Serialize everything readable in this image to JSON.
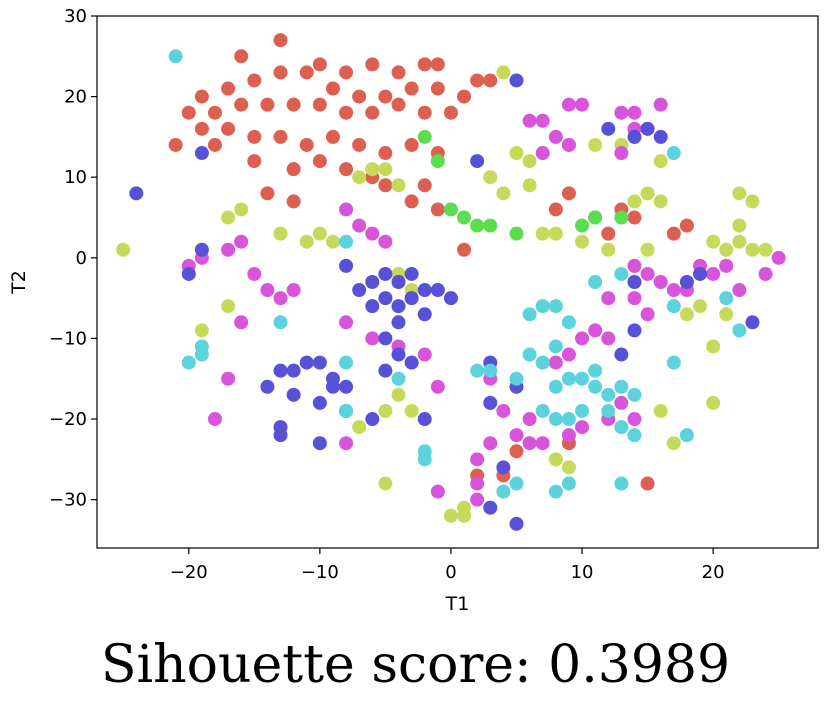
{
  "chart_data": {
    "type": "scatter",
    "title": "",
    "xlabel": "T1",
    "ylabel": "T2",
    "xlim": [
      -27,
      28
    ],
    "ylim": [
      -36,
      30
    ],
    "xticks": [
      -20,
      -10,
      0,
      10,
      20
    ],
    "yticks": [
      -30,
      -20,
      -10,
      0,
      10,
      20,
      30
    ],
    "xtick_labels": [
      "−20",
      "−10",
      "0",
      "10",
      "20"
    ],
    "ytick_labels": [
      "−30",
      "−20",
      "−10",
      "0",
      "10",
      "20",
      "30"
    ],
    "grid": false,
    "legend": "none",
    "series": [
      {
        "color": "#dd5f52",
        "points": [
          [
            -16,
            25
          ],
          [
            -13,
            27
          ],
          [
            -10,
            24
          ],
          [
            -8,
            23
          ],
          [
            -6,
            24
          ],
          [
            -4,
            23
          ],
          [
            -2,
            24
          ],
          [
            -1,
            24
          ],
          [
            2,
            22
          ],
          [
            3,
            22
          ],
          [
            -19,
            20
          ],
          [
            -17,
            21
          ],
          [
            -15,
            22
          ],
          [
            -13,
            23
          ],
          [
            -11,
            23
          ],
          [
            -9,
            21
          ],
          [
            -7,
            20
          ],
          [
            -5,
            20
          ],
          [
            -3,
            21
          ],
          [
            -1,
            21
          ],
          [
            1,
            20
          ],
          [
            -20,
            18
          ],
          [
            -18,
            18
          ],
          [
            -16,
            19
          ],
          [
            -14,
            19
          ],
          [
            -12,
            19
          ],
          [
            -10,
            19
          ],
          [
            -8,
            18
          ],
          [
            -6,
            18
          ],
          [
            -4,
            19
          ],
          [
            -2,
            18
          ],
          [
            0,
            18
          ],
          [
            -21,
            14
          ],
          [
            -19,
            16
          ],
          [
            -17,
            16
          ],
          [
            -15,
            15
          ],
          [
            -13,
            15
          ],
          [
            -11,
            14
          ],
          [
            -9,
            15
          ],
          [
            -7,
            14
          ],
          [
            -5,
            13
          ],
          [
            -3,
            14
          ],
          [
            -1,
            13
          ],
          [
            -18,
            14
          ],
          [
            -15,
            12
          ],
          [
            -12,
            11
          ],
          [
            -10,
            12
          ],
          [
            -8,
            11
          ],
          [
            -6,
            10
          ],
          [
            -2,
            9
          ],
          [
            -14,
            8
          ],
          [
            -12,
            7
          ],
          [
            -5,
            9
          ],
          [
            -3,
            7
          ],
          [
            -1,
            6
          ],
          [
            1,
            1
          ],
          [
            11,
            5
          ],
          [
            13,
            6
          ],
          [
            14,
            5
          ],
          [
            17,
            3
          ],
          [
            18,
            4
          ],
          [
            8,
            6
          ],
          [
            9,
            8
          ],
          [
            12,
            3
          ],
          [
            9,
            -23
          ],
          [
            4,
            -27
          ],
          [
            2,
            -27
          ],
          [
            15,
            -28
          ],
          [
            5,
            -24
          ]
        ]
      },
      {
        "color": "#c6d95b",
        "points": [
          [
            4,
            23
          ],
          [
            -6,
            11
          ],
          [
            -5,
            11
          ],
          [
            -7,
            10
          ],
          [
            -4,
            9
          ],
          [
            -16,
            6
          ],
          [
            -17,
            5
          ],
          [
            -13,
            3
          ],
          [
            -10,
            3
          ],
          [
            -11,
            2
          ],
          [
            -9,
            2
          ],
          [
            5,
            13
          ],
          [
            6,
            12
          ],
          [
            7,
            13
          ],
          [
            9,
            14
          ],
          [
            11,
            14
          ],
          [
            13,
            14
          ],
          [
            16,
            12
          ],
          [
            3,
            10
          ],
          [
            4,
            8
          ],
          [
            6,
            9
          ],
          [
            14,
            7
          ],
          [
            15,
            8
          ],
          [
            16,
            7
          ],
          [
            7,
            3
          ],
          [
            8,
            3
          ],
          [
            10,
            2
          ],
          [
            12,
            1
          ],
          [
            15,
            1
          ],
          [
            20,
            2
          ],
          [
            21,
            1
          ],
          [
            22,
            2
          ],
          [
            23,
            1
          ],
          [
            24,
            1
          ],
          [
            22,
            8
          ],
          [
            23,
            7
          ],
          [
            22,
            4
          ],
          [
            -25,
            1
          ],
          [
            -19,
            -9
          ],
          [
            -17,
            -6
          ],
          [
            -4,
            -2
          ],
          [
            -3,
            -4
          ],
          [
            18,
            -7
          ],
          [
            19,
            -6
          ],
          [
            20,
            -11
          ],
          [
            21,
            -7
          ],
          [
            20,
            -18
          ],
          [
            16,
            -19
          ],
          [
            -4,
            -17
          ],
          [
            -5,
            -19
          ],
          [
            -7,
            -21
          ],
          [
            -3,
            -19
          ],
          [
            -5,
            -28
          ],
          [
            0,
            -32
          ],
          [
            1,
            -31
          ],
          [
            1,
            -32
          ],
          [
            8,
            -25
          ],
          [
            9,
            -26
          ],
          [
            17,
            -23
          ]
        ]
      },
      {
        "color": "#5ade4f",
        "points": [
          [
            -2,
            15
          ],
          [
            -1,
            12
          ],
          [
            0,
            6
          ],
          [
            1,
            5
          ],
          [
            2,
            4
          ],
          [
            3,
            4
          ],
          [
            5,
            3
          ],
          [
            10,
            4
          ],
          [
            11,
            5
          ],
          [
            13,
            5
          ]
        ]
      },
      {
        "color": "#d854da",
        "points": [
          [
            9,
            19
          ],
          [
            10,
            19
          ],
          [
            13,
            18
          ],
          [
            14,
            18
          ],
          [
            16,
            19
          ],
          [
            6,
            17
          ],
          [
            7,
            17
          ],
          [
            8,
            15
          ],
          [
            9,
            14
          ],
          [
            7,
            13
          ],
          [
            14,
            16
          ],
          [
            15,
            16
          ],
          [
            13,
            13
          ],
          [
            -8,
            6
          ],
          [
            -7,
            4
          ],
          [
            -6,
            3
          ],
          [
            -5,
            2
          ],
          [
            -16,
            2
          ],
          [
            -17,
            1
          ],
          [
            -19,
            0
          ],
          [
            -20,
            -1
          ],
          [
            -15,
            -2
          ],
          [
            -14,
            -4
          ],
          [
            -13,
            -5
          ],
          [
            -12,
            -4
          ],
          [
            -16,
            -8
          ],
          [
            -17,
            -15
          ],
          [
            -18,
            -20
          ],
          [
            -8,
            -8
          ],
          [
            -6,
            -10
          ],
          [
            -4,
            -11
          ],
          [
            -2,
            -12
          ],
          [
            -1,
            -16
          ],
          [
            14,
            -1
          ],
          [
            15,
            -2
          ],
          [
            16,
            -3
          ],
          [
            17,
            -4
          ],
          [
            18,
            -4
          ],
          [
            14,
            -5
          ],
          [
            15,
            -7
          ],
          [
            12,
            -5
          ],
          [
            11,
            -9
          ],
          [
            12,
            -10
          ],
          [
            10,
            -10
          ],
          [
            9,
            -12
          ],
          [
            8,
            -13
          ],
          [
            3,
            -15
          ],
          [
            4,
            -19
          ],
          [
            5,
            -22
          ],
          [
            6,
            -23
          ],
          [
            7,
            -23
          ],
          [
            9,
            -22
          ],
          [
            10,
            -21
          ],
          [
            12,
            -20
          ],
          [
            13,
            -18
          ],
          [
            14,
            -20
          ],
          [
            6,
            -20
          ],
          [
            3,
            -23
          ],
          [
            2,
            -25
          ],
          [
            2,
            -28
          ],
          [
            2,
            -30
          ],
          [
            -1,
            -29
          ],
          [
            -8,
            -23
          ],
          [
            25,
            0
          ],
          [
            24,
            -2
          ],
          [
            20,
            -2
          ],
          [
            22,
            -4
          ],
          [
            19,
            -1
          ],
          [
            21,
            -1
          ]
        ]
      },
      {
        "color": "#5651d6",
        "points": [
          [
            5,
            22
          ],
          [
            12,
            16
          ],
          [
            14,
            15
          ],
          [
            15,
            16
          ],
          [
            16,
            15
          ],
          [
            2,
            12
          ],
          [
            -19,
            13
          ],
          [
            -24,
            8
          ],
          [
            -19,
            1
          ],
          [
            -20,
            -2
          ],
          [
            -8,
            -1
          ],
          [
            -5,
            -2
          ],
          [
            -4,
            -3
          ],
          [
            -3,
            -2
          ],
          [
            -6,
            -3
          ],
          [
            -5,
            -5
          ],
          [
            -4,
            -6
          ],
          [
            -3,
            -5
          ],
          [
            -2,
            -4
          ],
          [
            -1,
            -4
          ],
          [
            0,
            -5
          ],
          [
            -7,
            -4
          ],
          [
            -6,
            -6
          ],
          [
            -4,
            -8
          ],
          [
            -2,
            -7
          ],
          [
            -5,
            -10
          ],
          [
            -4,
            -12
          ],
          [
            -3,
            -13
          ],
          [
            -5,
            -14
          ],
          [
            -13,
            -14
          ],
          [
            -12,
            -14
          ],
          [
            -11,
            -13
          ],
          [
            -10,
            -13
          ],
          [
            -9,
            -15
          ],
          [
            -8,
            -16
          ],
          [
            -14,
            -16
          ],
          [
            -12,
            -17
          ],
          [
            -10,
            -18
          ],
          [
            -9,
            -16
          ],
          [
            -8,
            -19
          ],
          [
            -6,
            -20
          ],
          [
            -13,
            -21
          ],
          [
            -13,
            -22
          ],
          [
            -10,
            -23
          ],
          [
            -2,
            -20
          ],
          [
            3,
            -13
          ],
          [
            5,
            -16
          ],
          [
            3,
            -18
          ],
          [
            4,
            -26
          ],
          [
            5,
            -33
          ],
          [
            3,
            -31
          ],
          [
            14,
            -3
          ],
          [
            18,
            -3
          ],
          [
            19,
            -2
          ],
          [
            23,
            -8
          ],
          [
            14,
            -9
          ],
          [
            13,
            -12
          ]
        ]
      },
      {
        "color": "#5bd2dc",
        "points": [
          [
            -21,
            25
          ],
          [
            17,
            13
          ],
          [
            -8,
            2
          ],
          [
            -13,
            -8
          ],
          [
            -20,
            -13
          ],
          [
            -19,
            -12
          ],
          [
            -19,
            -11
          ],
          [
            -8,
            -13
          ],
          [
            -8,
            -19
          ],
          [
            -4,
            -15
          ],
          [
            -2,
            -25
          ],
          [
            -2,
            -24
          ],
          [
            2,
            -14
          ],
          [
            3,
            -14
          ],
          [
            6,
            -7
          ],
          [
            7,
            -6
          ],
          [
            8,
            -6
          ],
          [
            9,
            -8
          ],
          [
            11,
            -3
          ],
          [
            13,
            -2
          ],
          [
            17,
            -6
          ],
          [
            21,
            -5
          ],
          [
            22,
            -9
          ],
          [
            8,
            -11
          ],
          [
            6,
            -12
          ],
          [
            7,
            -13
          ],
          [
            5,
            -15
          ],
          [
            8,
            -16
          ],
          [
            9,
            -15
          ],
          [
            10,
            -15
          ],
          [
            11,
            -14
          ],
          [
            11,
            -16
          ],
          [
            7,
            -19
          ],
          [
            8,
            -20
          ],
          [
            9,
            -20
          ],
          [
            10,
            -19
          ],
          [
            12,
            -17
          ],
          [
            13,
            -16
          ],
          [
            14,
            -17
          ],
          [
            12,
            -19
          ],
          [
            13,
            -21
          ],
          [
            14,
            -22
          ],
          [
            17,
            -13
          ],
          [
            18,
            -22
          ],
          [
            8,
            -29
          ],
          [
            9,
            -28
          ],
          [
            5,
            -28
          ],
          [
            13,
            -28
          ],
          [
            4,
            -29
          ]
        ]
      }
    ]
  },
  "caption": "Sihouette score: 0.3989"
}
